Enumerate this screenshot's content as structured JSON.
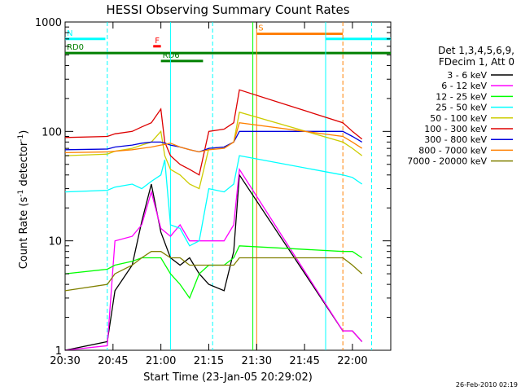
{
  "chart_data": {
    "type": "line",
    "title": "HESSI Observing Summary Count Rates",
    "xlabel": "Start Time (23-Jan-05 20:29:02)",
    "ylabel": "Count Rate (s⁻¹ detector⁻¹)",
    "ylabel_main": "Count Rate (s",
    "ylabel_sup1": "-1",
    "ylabel_mid": " detector",
    "ylabel_sup2": "-1",
    "ylabel_end": ")",
    "scale_y": "log",
    "ylim": [
      1,
      1000
    ],
    "xlim_minutes": [
      20.5,
      22.2
    ],
    "x_ticks": [
      {
        "value": 20.5,
        "label": "20:30"
      },
      {
        "value": 20.75,
        "label": "20:45"
      },
      {
        "value": 21.0,
        "label": "21:00"
      },
      {
        "value": 21.25,
        "label": "21:15"
      },
      {
        "value": 21.5,
        "label": "21:30"
      },
      {
        "value": 21.75,
        "label": "21:45"
      },
      {
        "value": 22.0,
        "label": "22:00"
      }
    ],
    "y_ticks": [
      {
        "value": 1,
        "label": "1"
      },
      {
        "value": 10,
        "label": "10"
      },
      {
        "value": 100,
        "label": "100"
      },
      {
        "value": 1000,
        "label": "1000"
      }
    ],
    "legend_header": [
      "Det 1,3,4,5,6,9,",
      "FDecim 1, Att 0"
    ],
    "series": [
      {
        "name": "3 - 6 keV",
        "color": "#000000",
        "data": [
          [
            20.5,
            1
          ],
          [
            20.72,
            1.2
          ],
          [
            20.76,
            3.5
          ],
          [
            20.85,
            6
          ],
          [
            20.9,
            15
          ],
          [
            20.95,
            33
          ],
          [
            21.0,
            12
          ],
          [
            21.05,
            7
          ],
          [
            21.1,
            6
          ],
          [
            21.15,
            7
          ],
          [
            21.2,
            5
          ],
          [
            21.25,
            4
          ],
          [
            21.33,
            3.5
          ],
          [
            21.38,
            8
          ],
          [
            21.41,
            40
          ],
          [
            21.95,
            1.5
          ],
          [
            22.0,
            1.5
          ],
          [
            22.05,
            1.2
          ]
        ]
      },
      {
        "name": "6 - 12 keV",
        "color": "#ff00ff",
        "data": [
          [
            20.5,
            1
          ],
          [
            20.72,
            1.1
          ],
          [
            20.76,
            10
          ],
          [
            20.85,
            11
          ],
          [
            20.9,
            14
          ],
          [
            20.95,
            28
          ],
          [
            21.0,
            13
          ],
          [
            21.05,
            11
          ],
          [
            21.1,
            14
          ],
          [
            21.15,
            10
          ],
          [
            21.2,
            10
          ],
          [
            21.25,
            10
          ],
          [
            21.33,
            10
          ],
          [
            21.38,
            14
          ],
          [
            21.41,
            45
          ],
          [
            21.95,
            1.5
          ],
          [
            22.0,
            1.5
          ],
          [
            22.05,
            1.2
          ]
        ]
      },
      {
        "name": "12 - 25 keV",
        "color": "#00ff00",
        "data": [
          [
            20.5,
            5
          ],
          [
            20.72,
            5.5
          ],
          [
            20.76,
            6
          ],
          [
            20.85,
            6.5
          ],
          [
            20.9,
            7
          ],
          [
            20.95,
            7
          ],
          [
            21.0,
            7
          ],
          [
            21.05,
            5
          ],
          [
            21.1,
            4
          ],
          [
            21.15,
            3
          ],
          [
            21.2,
            5
          ],
          [
            21.25,
            6
          ],
          [
            21.33,
            6
          ],
          [
            21.38,
            7
          ],
          [
            21.41,
            9
          ],
          [
            21.95,
            8
          ],
          [
            22.0,
            8
          ],
          [
            22.05,
            7
          ]
        ]
      },
      {
        "name": "25 - 50 keV",
        "color": "#00ffff",
        "data": [
          [
            20.5,
            28
          ],
          [
            20.72,
            29
          ],
          [
            20.76,
            31
          ],
          [
            20.85,
            33
          ],
          [
            20.9,
            30
          ],
          [
            20.95,
            35
          ],
          [
            21.0,
            40
          ],
          [
            21.02,
            55
          ],
          [
            21.05,
            14
          ],
          [
            21.1,
            13
          ],
          [
            21.15,
            9
          ],
          [
            21.2,
            10
          ],
          [
            21.25,
            30
          ],
          [
            21.33,
            28
          ],
          [
            21.38,
            33
          ],
          [
            21.41,
            60
          ],
          [
            21.95,
            40
          ],
          [
            22.0,
            38
          ],
          [
            22.05,
            33
          ]
        ]
      },
      {
        "name": "50 - 100 keV",
        "color": "#cccc00",
        "data": [
          [
            20.5,
            60
          ],
          [
            20.72,
            62
          ],
          [
            20.76,
            66
          ],
          [
            20.85,
            70
          ],
          [
            20.9,
            75
          ],
          [
            20.95,
            80
          ],
          [
            21.0,
            100
          ],
          [
            21.02,
            60
          ],
          [
            21.05,
            45
          ],
          [
            21.1,
            40
          ],
          [
            21.15,
            33
          ],
          [
            21.2,
            30
          ],
          [
            21.25,
            70
          ],
          [
            21.33,
            72
          ],
          [
            21.38,
            80
          ],
          [
            21.41,
            150
          ],
          [
            21.95,
            80
          ],
          [
            22.0,
            70
          ],
          [
            22.05,
            60
          ]
        ]
      },
      {
        "name": "100 - 300 keV",
        "color": "#dd0000",
        "data": [
          [
            20.5,
            88
          ],
          [
            20.72,
            90
          ],
          [
            20.76,
            95
          ],
          [
            20.85,
            100
          ],
          [
            20.9,
            110
          ],
          [
            20.95,
            120
          ],
          [
            21.0,
            160
          ],
          [
            21.02,
            80
          ],
          [
            21.05,
            60
          ],
          [
            21.1,
            50
          ],
          [
            21.15,
            45
          ],
          [
            21.2,
            40
          ],
          [
            21.25,
            100
          ],
          [
            21.33,
            105
          ],
          [
            21.38,
            120
          ],
          [
            21.41,
            240
          ],
          [
            21.95,
            120
          ],
          [
            22.0,
            100
          ],
          [
            22.05,
            85
          ]
        ]
      },
      {
        "name": "300 - 800 keV",
        "color": "#0000dd",
        "data": [
          [
            20.5,
            68
          ],
          [
            20.72,
            69
          ],
          [
            20.76,
            72
          ],
          [
            20.85,
            75
          ],
          [
            20.9,
            78
          ],
          [
            20.95,
            80
          ],
          [
            21.0,
            80
          ],
          [
            21.02,
            78
          ],
          [
            21.05,
            75
          ],
          [
            21.1,
            72
          ],
          [
            21.15,
            68
          ],
          [
            21.2,
            65
          ],
          [
            21.25,
            70
          ],
          [
            21.33,
            72
          ],
          [
            21.38,
            80
          ],
          [
            21.41,
            100
          ],
          [
            21.95,
            100
          ],
          [
            22.0,
            90
          ],
          [
            22.05,
            80
          ]
        ]
      },
      {
        "name": "800 - 7000 keV",
        "color": "#ff8000",
        "data": [
          [
            20.5,
            64
          ],
          [
            20.72,
            65
          ],
          [
            20.76,
            66
          ],
          [
            20.85,
            68
          ],
          [
            20.9,
            70
          ],
          [
            20.95,
            72
          ],
          [
            21.0,
            75
          ],
          [
            21.02,
            76
          ],
          [
            21.05,
            78
          ],
          [
            21.1,
            72
          ],
          [
            21.15,
            68
          ],
          [
            21.2,
            65
          ],
          [
            21.25,
            68
          ],
          [
            21.33,
            70
          ],
          [
            21.38,
            80
          ],
          [
            21.41,
            120
          ],
          [
            21.95,
            90
          ],
          [
            22.0,
            80
          ],
          [
            22.05,
            70
          ]
        ]
      },
      {
        "name": "7000 - 20000 keV",
        "color": "#808000",
        "data": [
          [
            20.5,
            3.5
          ],
          [
            20.72,
            4
          ],
          [
            20.76,
            5
          ],
          [
            20.85,
            6
          ],
          [
            20.9,
            7
          ],
          [
            20.95,
            8
          ],
          [
            21.0,
            8
          ],
          [
            21.05,
            7
          ],
          [
            21.1,
            7
          ],
          [
            21.15,
            6
          ],
          [
            21.2,
            6
          ],
          [
            21.25,
            6
          ],
          [
            21.33,
            6
          ],
          [
            21.38,
            6
          ],
          [
            21.41,
            7
          ],
          [
            21.95,
            7
          ],
          [
            22.0,
            6
          ],
          [
            22.05,
            5
          ]
        ]
      }
    ],
    "flag_bars": [
      {
        "label": "N",
        "color": "#00ffff",
        "segments": [
          [
            20.5,
            20.71
          ],
          [
            21.86,
            22.2
          ]
        ],
        "y": 700
      },
      {
        "label": "S",
        "color": "#ff8000",
        "segments": [
          [
            21.5,
            21.95
          ]
        ],
        "y": 780
      },
      {
        "label": "F",
        "color": "#ff0000",
        "segments": [
          [
            20.96,
            21.0
          ]
        ],
        "y": 600
      },
      {
        "label": "RD0",
        "color": "#008000",
        "segments": [
          [
            20.5,
            22.2
          ]
        ],
        "y": 520
      },
      {
        "label": "RD6",
        "color": "#008000",
        "segments": [
          [
            21.0,
            21.22
          ]
        ],
        "y": 440
      }
    ],
    "vlines": [
      {
        "x": 20.72,
        "color": "#00ffff",
        "style": "dashed"
      },
      {
        "x": 21.05,
        "color": "#00ffff",
        "style": "solid"
      },
      {
        "x": 21.27,
        "color": "#00ffff",
        "style": "dashed"
      },
      {
        "x": 21.48,
        "color": "#00ff00",
        "style": "solid"
      },
      {
        "x": 21.5,
        "color": "#ff8000",
        "style": "solid"
      },
      {
        "x": 21.86,
        "color": "#00ffff",
        "style": "solid"
      },
      {
        "x": 21.95,
        "color": "#ff8000",
        "style": "dashed"
      },
      {
        "x": 22.1,
        "color": "#00ffff",
        "style": "dashed"
      }
    ]
  },
  "footer": {
    "timestamp": "26-Feb-2010 02:19"
  }
}
